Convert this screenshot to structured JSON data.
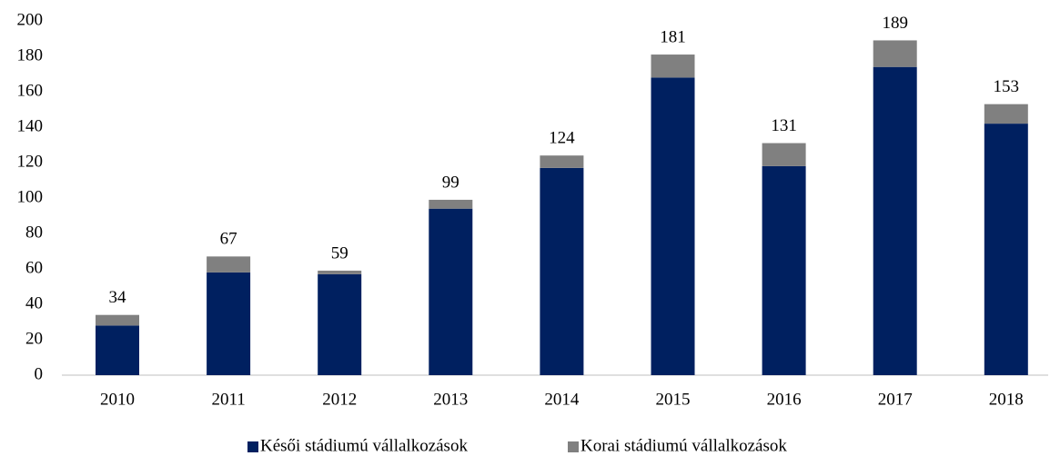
{
  "chart_data": {
    "type": "stacked_bar",
    "categories": [
      "2010",
      "2011",
      "2012",
      "2013",
      "2014",
      "2015",
      "2016",
      "2017",
      "2018"
    ],
    "series": [
      {
        "name": "Késői stádiumú vállalkozások",
        "color": "#002060",
        "values": [
          28,
          58,
          57,
          94,
          117,
          168,
          118,
          174,
          142
        ]
      },
      {
        "name": "Korai stádiumú vállalkozások",
        "color": "#808080",
        "values": [
          6,
          9,
          2,
          5,
          7,
          13,
          13,
          15,
          11
        ]
      }
    ],
    "totals": [
      34,
      67,
      59,
      99,
      124,
      181,
      131,
      189,
      153
    ],
    "ylim": [
      0,
      200
    ],
    "yticks": [
      0,
      20,
      40,
      60,
      80,
      100,
      120,
      140,
      160,
      180,
      200
    ],
    "grid": false,
    "legend": "bottom"
  }
}
